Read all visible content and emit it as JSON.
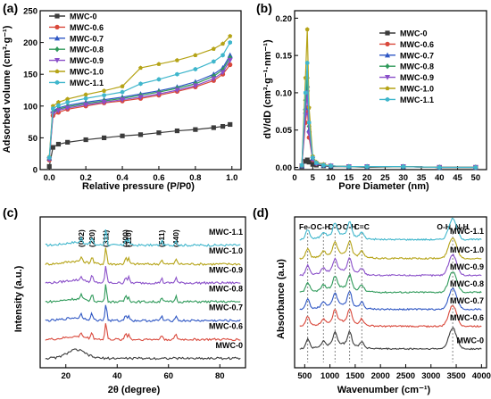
{
  "colors": {
    "MWC-0": "#3b3b3b",
    "MWC-0.6": "#d9483b",
    "MWC-0.7": "#2f57c4",
    "MWC-0.8": "#2f9a5a",
    "MWC-0.9": "#8a4fc9",
    "MWC-1.0": "#b5a316",
    "MWC-1.1": "#3fb6cc"
  },
  "chart_data": [
    {
      "panel": "(a)",
      "type": "line",
      "xlabel": "Relative pressure (P/P0)",
      "ylabel": "Adsorbed volume (cm³·g⁻¹)",
      "xlim": [
        -0.05,
        1.05
      ],
      "ylim": [
        0,
        250
      ],
      "xticks": [
        0.0,
        0.2,
        0.4,
        0.6,
        0.8,
        1.0
      ],
      "yticks": [
        0,
        50,
        100,
        150,
        200,
        250
      ],
      "legend_position": "top-left",
      "series": [
        {
          "name": "MWC-0",
          "x": [
            0.0,
            0.02,
            0.05,
            0.1,
            0.2,
            0.3,
            0.4,
            0.5,
            0.6,
            0.7,
            0.8,
            0.9,
            0.95,
            0.99
          ],
          "y": [
            5,
            35,
            40,
            43,
            47,
            50,
            53,
            55,
            58,
            61,
            63,
            66,
            68,
            71
          ]
        },
        {
          "name": "MWC-0.6",
          "x": [
            0.0,
            0.02,
            0.05,
            0.1,
            0.2,
            0.3,
            0.4,
            0.5,
            0.6,
            0.7,
            0.8,
            0.9,
            0.95,
            0.99
          ],
          "y": [
            15,
            85,
            90,
            95,
            100,
            105,
            108,
            112,
            117,
            123,
            130,
            140,
            150,
            165
          ]
        },
        {
          "name": "MWC-0.7",
          "x": [
            0.0,
            0.02,
            0.05,
            0.1,
            0.2,
            0.3,
            0.4,
            0.5,
            0.6,
            0.7,
            0.8,
            0.9,
            0.95,
            0.99
          ],
          "y": [
            18,
            92,
            97,
            101,
            106,
            110,
            114,
            119,
            124,
            130,
            138,
            150,
            160,
            180
          ]
        },
        {
          "name": "MWC-0.8",
          "x": [
            0.0,
            0.02,
            0.05,
            0.1,
            0.2,
            0.3,
            0.4,
            0.5,
            0.6,
            0.7,
            0.8,
            0.9,
            0.95,
            0.99
          ],
          "y": [
            17,
            90,
            95,
            99,
            104,
            108,
            112,
            117,
            122,
            128,
            135,
            147,
            157,
            176
          ]
        },
        {
          "name": "MWC-0.9",
          "x": [
            0.0,
            0.02,
            0.05,
            0.1,
            0.2,
            0.3,
            0.4,
            0.5,
            0.6,
            0.7,
            0.8,
            0.9,
            0.95,
            0.99
          ],
          "y": [
            16,
            88,
            93,
            97,
            102,
            106,
            110,
            114,
            119,
            125,
            132,
            143,
            153,
            172
          ]
        },
        {
          "name": "MWC-1.0",
          "x": [
            0.0,
            0.02,
            0.05,
            0.1,
            0.2,
            0.3,
            0.4,
            0.5,
            0.6,
            0.7,
            0.8,
            0.9,
            0.95,
            0.99
          ],
          "y": [
            20,
            100,
            106,
            111,
            118,
            124,
            131,
            160,
            166,
            172,
            180,
            190,
            198,
            210
          ]
        },
        {
          "name": "MWC-1.1",
          "x": [
            0.0,
            0.02,
            0.05,
            0.1,
            0.2,
            0.3,
            0.4,
            0.5,
            0.6,
            0.7,
            0.8,
            0.9,
            0.95,
            0.99
          ],
          "y": [
            19,
            96,
            101,
            106,
            112,
            117,
            122,
            135,
            142,
            150,
            158,
            170,
            180,
            200
          ]
        }
      ]
    },
    {
      "panel": "(b)",
      "type": "line",
      "xlabel": "Pore Diameter (nm)",
      "ylabel": "dV/dD (cm³·g⁻¹·nm⁻¹)",
      "xlim": [
        0,
        53
      ],
      "ylim": [
        -0.003,
        0.21
      ],
      "xticks": [
        0,
        5,
        10,
        15,
        20,
        25,
        30,
        35,
        40,
        45,
        50
      ],
      "yticks": [
        0.0,
        0.05,
        0.1,
        0.15,
        0.2
      ],
      "ytick_labels": [
        "0.00",
        "0.05",
        "0.10",
        "0.15",
        "0.20"
      ],
      "legend_position": "top-right",
      "series": [
        {
          "name": "MWC-0",
          "x": [
            2,
            3,
            3.5,
            4,
            5,
            6,
            8,
            10,
            15,
            20,
            30,
            40,
            50
          ],
          "y": [
            0.001,
            0.008,
            0.01,
            0.007,
            0.004,
            0.003,
            0.002,
            0.001,
            0.001,
            0.0,
            0.001,
            0.0,
            0.0
          ]
        },
        {
          "name": "MWC-0.6",
          "x": [
            2,
            3,
            3.5,
            4,
            5,
            6,
            8,
            10,
            15,
            20,
            30,
            40,
            50
          ],
          "y": [
            0.002,
            0.06,
            0.08,
            0.04,
            0.01,
            0.005,
            0.003,
            0.002,
            0.001,
            0.001,
            0.001,
            0.0,
            0.0
          ]
        },
        {
          "name": "MWC-0.7",
          "x": [
            2,
            3,
            3.5,
            4,
            5,
            6,
            8,
            10,
            15,
            20,
            30,
            40,
            50
          ],
          "y": [
            0.002,
            0.08,
            0.11,
            0.05,
            0.012,
            0.006,
            0.003,
            0.002,
            0.001,
            0.001,
            0.001,
            0.0,
            0.0
          ]
        },
        {
          "name": "MWC-0.8",
          "x": [
            2,
            3,
            3.5,
            4,
            5,
            6,
            8,
            10,
            15,
            20,
            30,
            40,
            50
          ],
          "y": [
            0.002,
            0.09,
            0.12,
            0.055,
            0.013,
            0.006,
            0.003,
            0.002,
            0.001,
            0.001,
            0.001,
            0.0,
            0.0
          ]
        },
        {
          "name": "MWC-0.9",
          "x": [
            2,
            3,
            3.5,
            4,
            5,
            6,
            8,
            10,
            15,
            20,
            30,
            40,
            50
          ],
          "y": [
            0.002,
            0.07,
            0.1,
            0.045,
            0.011,
            0.005,
            0.003,
            0.002,
            0.001,
            0.001,
            0.001,
            0.0,
            0.0
          ]
        },
        {
          "name": "MWC-1.0",
          "x": [
            2,
            3,
            3.5,
            4,
            5,
            6,
            8,
            10,
            15,
            20,
            30,
            40,
            50
          ],
          "y": [
            0.003,
            0.12,
            0.185,
            0.08,
            0.015,
            0.007,
            0.004,
            0.002,
            0.001,
            0.001,
            0.001,
            0.0,
            0.0
          ]
        },
        {
          "name": "MWC-1.1",
          "x": [
            2,
            3,
            3.5,
            4,
            5,
            6,
            8,
            10,
            15,
            20,
            30,
            40,
            50
          ],
          "y": [
            0.003,
            0.1,
            0.14,
            0.06,
            0.013,
            0.006,
            0.003,
            0.002,
            0.001,
            0.001,
            0.001,
            0.0,
            0.0
          ]
        }
      ]
    },
    {
      "panel": "(c)",
      "type": "line",
      "xlabel": "2θ (degree)",
      "ylabel": "Intensity (a.u.)",
      "xlim": [
        10,
        90
      ],
      "ylim": [
        0,
        8
      ],
      "xticks": [
        20,
        40,
        60,
        80
      ],
      "peak_labels": [
        {
          "label": "(002)",
          "x": 26
        },
        {
          "label": "(220)",
          "x": 30.2
        },
        {
          "label": "(311)",
          "x": 35.6
        },
        {
          "label": "(400)",
          "x": 43.3
        },
        {
          "label": "(110)",
          "x": 44.5
        },
        {
          "label": "(511)",
          "x": 57.3
        },
        {
          "label": "(440)",
          "x": 62.9
        }
      ],
      "series_labels": [
        "MWC-1.1",
        "MWC-1.0",
        "MWC-0.9",
        "MWC-0.8",
        "MWC-0.7",
        "MWC-0.6",
        "MWC-0"
      ],
      "offsets": [
        6.5,
        5.5,
        4.5,
        3.5,
        2.5,
        1.5,
        0.5
      ],
      "peaks": [
        {
          "x": 26,
          "h": 0.25
        },
        {
          "x": 30.2,
          "h": 0.35
        },
        {
          "x": 35.6,
          "h": 0.9
        },
        {
          "x": 43.3,
          "h": 0.35
        },
        {
          "x": 44.5,
          "h": 0.3
        },
        {
          "x": 57.3,
          "h": 0.25
        },
        {
          "x": 62.9,
          "h": 0.3
        }
      ]
    },
    {
      "panel": "(d)",
      "type": "line",
      "xlabel": "Wavenumber (cm⁻¹)",
      "ylabel": "Absorbance (a.u)",
      "xlim": [
        300,
        4100
      ],
      "ylim": [
        0,
        8
      ],
      "xticks": [
        500,
        1000,
        1500,
        2000,
        2500,
        3000,
        3500,
        4000
      ],
      "band_labels": [
        {
          "label": "Fe-O",
          "x": 560
        },
        {
          "label": "C-H",
          "x": 870
        },
        {
          "label": "C-O",
          "x": 1100
        },
        {
          "label": "O-H",
          "x": 1390
        },
        {
          "label": "C=C",
          "x": 1630
        },
        {
          "label": "O-H, N-H",
          "x": 3430
        }
      ],
      "series_labels": [
        "MWC-1.1",
        "MWC-1.0",
        "MWC-0.9",
        "MWC-0.8",
        "MWC-0.7",
        "MWC-0.6",
        "MWC-0"
      ],
      "offsets": [
        6.8,
        5.8,
        4.9,
        4.0,
        3.1,
        2.2,
        1.0
      ],
      "bands": [
        {
          "x": 560,
          "h": 0.5
        },
        {
          "x": 870,
          "h": 0.25
        },
        {
          "x": 1100,
          "h": 0.6
        },
        {
          "x": 1390,
          "h": 0.7
        },
        {
          "x": 1630,
          "h": 0.3
        },
        {
          "x": 3430,
          "h": 1.1
        }
      ]
    }
  ]
}
